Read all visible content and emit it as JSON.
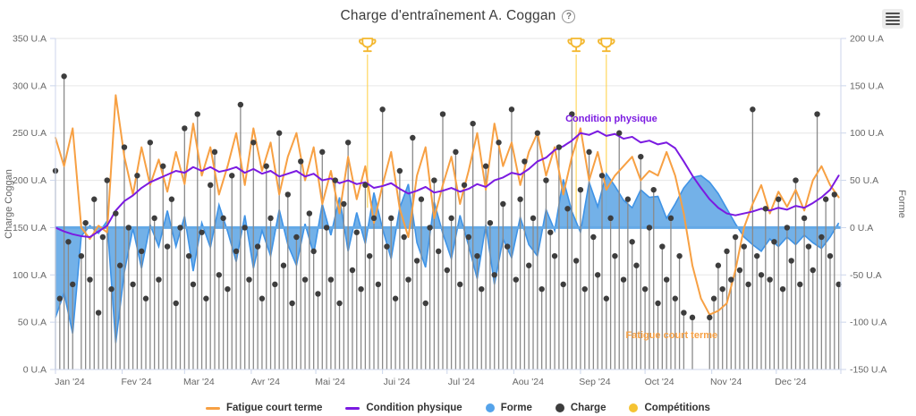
{
  "header": {
    "title": "Charge d'entraînement A. Coggan",
    "help_glyph": "?"
  },
  "legend": {
    "items": [
      {
        "label": "Fatigue court terme",
        "marker": "line",
        "color": "#f7a043"
      },
      {
        "label": "Condition physique",
        "marker": "line",
        "color": "#7b1ae1"
      },
      {
        "label": "Forme",
        "marker": "circle",
        "color": "#55a3ea"
      },
      {
        "label": "Charge",
        "marker": "circle",
        "color": "#3d3d3d"
      },
      {
        "label": "Compétitions",
        "marker": "circle",
        "color": "#f5c332"
      }
    ]
  },
  "chart_data": {
    "type": "combo",
    "title": "Charge d'entraînement A. Coggan",
    "grid_color": "#e6e6e6",
    "axis_line_color": "#ccd6eb",
    "tick_label_color": "#666666",
    "axis_title_color": "#666666",
    "x": {
      "unit": "day_of_year",
      "days_in_year": 365,
      "month_labels": [
        "Jan '24",
        "Fev '24",
        "Mar '24",
        "Avr '24",
        "Mai '24",
        "Jui '24",
        "Jul '24",
        "Aou '24",
        "Sep '24",
        "Oct '24",
        "Nov '24",
        "Dec '24"
      ],
      "month_start_days": [
        0,
        31,
        60,
        91,
        121,
        152,
        182,
        213,
        244,
        274,
        305,
        335
      ]
    },
    "axes": {
      "left": {
        "title": "Charge Coggan",
        "min": 0,
        "max": 350,
        "tick_step": 50,
        "tick_labels": [
          "0 U.A",
          "50 U.A",
          "100 U.A",
          "150 U.A",
          "200 U.A",
          "250 U.A",
          "300 U.A",
          "350 U.A"
        ]
      },
      "right": {
        "title": "Forme",
        "min": -150,
        "max": 200,
        "tick_step": 50,
        "tick_labels": [
          "-150 U.A",
          "-100 U.A",
          "-50 U.A",
          "0 U.A",
          "50 U.A",
          "100 U.A",
          "150 U.A",
          "200 U.A"
        ]
      }
    },
    "series": [
      {
        "name": "Forme",
        "type": "area",
        "axis": "right",
        "baseline": 0,
        "color": "#64a9e6",
        "line_color": "#3f93e6",
        "step_days": 4,
        "values": [
          -95,
          -69,
          -112,
          -9,
          2,
          -6,
          7,
          -122,
          -47,
          -1,
          -43,
          3,
          -20,
          18,
          -20,
          12,
          -46,
          5,
          -21,
          24,
          -4,
          -36,
          13,
          -43,
          -3,
          -30,
          19,
          -18,
          -40,
          4,
          -28,
          25,
          -8,
          32,
          -25,
          16,
          -17,
          37,
          -1,
          -33,
          21,
          46,
          -16,
          -42,
          27,
          -6,
          -33,
          13,
          -19,
          -54,
          3,
          -60,
          -12,
          -32,
          11,
          -18,
          -30,
          19,
          -3,
          51,
          17,
          -5,
          48,
          22,
          57,
          44,
          29,
          21,
          40,
          32,
          33,
          10,
          25,
          42,
          53,
          55,
          48,
          36,
          20,
          4,
          -10,
          -18,
          -25,
          -12,
          -20,
          -10,
          -18,
          -8,
          -16,
          -22,
          -10,
          5
        ]
      },
      {
        "name": "Charge",
        "type": "lollipop",
        "axis": "left",
        "dot_color": "#3d3d3d",
        "stem_color": "#8a8a8a",
        "step_days": 2,
        "values": [
          210,
          75,
          310,
          135,
          90,
          0,
          120,
          155,
          95,
          180,
          60,
          140,
          200,
          85,
          165,
          110,
          235,
          150,
          90,
          205,
          125,
          75,
          240,
          160,
          95,
          215,
          130,
          180,
          70,
          150,
          255,
          120,
          90,
          270,
          145,
          75,
          195,
          230,
          100,
          160,
          85,
          205,
          125,
          280,
          150,
          95,
          240,
          130,
          75,
          215,
          160,
          90,
          250,
          110,
          185,
          70,
          140,
          220,
          95,
          165,
          125,
          80,
          230,
          150,
          95,
          200,
          70,
          175,
          240,
          105,
          145,
          85,
          195,
          120,
          160,
          90,
          275,
          130,
          160,
          75,
          210,
          140,
          95,
          245,
          115,
          180,
          70,
          150,
          200,
          125,
          270,
          105,
          160,
          230,
          90,
          195,
          140,
          260,
          120,
          85,
          215,
          155,
          100,
          240,
          175,
          130,
          275,
          95,
          180,
          220,
          110,
          160,
          250,
          85,
          200,
          145,
          120,
          235,
          90,
          170,
          270,
          115,
          190,
          85,
          230,
          140,
          100,
          205,
          75,
          160,
          120,
          250,
          95,
          180,
          135,
          110,
          225,
          85,
          150,
          190,
          70,
          130,
          95,
          160,
          75,
          120,
          60,
          0,
          55,
          0,
          0,
          0,
          55,
          75,
          110,
          85,
          125,
          95,
          140,
          105,
          130,
          90,
          275,
          120,
          100,
          170,
          95,
          135,
          180,
          85,
          150,
          115,
          200,
          90,
          160,
          130,
          105,
          270,
          140,
          180,
          120,
          185,
          90
        ]
      },
      {
        "name": "Fatigue court terme",
        "type": "line",
        "axis": "left",
        "color": "#f7a043",
        "step_days": 4,
        "values": [
          245,
          215,
          255,
          150,
          138,
          152,
          145,
          290,
          225,
          185,
          235,
          195,
          222,
          188,
          230,
          196,
          260,
          205,
          235,
          185,
          215,
          250,
          195,
          255,
          210,
          240,
          185,
          225,
          250,
          200,
          235,
          175,
          210,
          165,
          225,
          180,
          215,
          155,
          195,
          230,
          170,
          140,
          205,
          235,
          160,
          195,
          225,
          175,
          210,
          250,
          190,
          260,
          215,
          240,
          195,
          230,
          250,
          205,
          235,
          185,
          225,
          255,
          200,
          230,
          190,
          205,
          215,
          225,
          200,
          210,
          205,
          230,
          205,
          165,
          110,
          75,
          58,
          62,
          70,
          105,
          150,
          175,
          195,
          165,
          188,
          172,
          190,
          168,
          200,
          215,
          195,
          182
        ]
      },
      {
        "name": "Condition physique",
        "type": "line",
        "axis": "left",
        "color": "#7b1ae1",
        "step_days": 4,
        "values": [
          150,
          146,
          143,
          141,
          140,
          146,
          152,
          168,
          178,
          184,
          192,
          198,
          202,
          206,
          210,
          208,
          214,
          210,
          214,
          209,
          211,
          214,
          208,
          212,
          207,
          210,
          204,
          207,
          210,
          204,
          207,
          200,
          202,
          197,
          200,
          196,
          198,
          192,
          194,
          197,
          191,
          186,
          189,
          193,
          187,
          189,
          192,
          188,
          191,
          196,
          193,
          200,
          203,
          208,
          206,
          212,
          220,
          224,
          232,
          236,
          242,
          250,
          248,
          252,
          247,
          249,
          244,
          246,
          240,
          242,
          238,
          240,
          234,
          220,
          205,
          192,
          180,
          171,
          165,
          163,
          165,
          167,
          170,
          168,
          171,
          169,
          173,
          171,
          176,
          182,
          190,
          205
        ]
      },
      {
        "name": "Compétitions",
        "type": "events",
        "color": "#f3b72e",
        "line_color": "#ffd75e",
        "events": [
          {
            "day": 145,
            "line_to_value": 171
          },
          {
            "day": 242,
            "line_to_value": 156
          },
          {
            "day": 256,
            "line_to_value": 156
          }
        ]
      }
    ],
    "annotations": [
      {
        "text": "Condition physique",
        "day": 237,
        "value": 262,
        "color": "#7b1ae1"
      },
      {
        "text": "Fatigue court terme",
        "day": 265,
        "value": 33,
        "color": "#f7a043"
      }
    ]
  }
}
